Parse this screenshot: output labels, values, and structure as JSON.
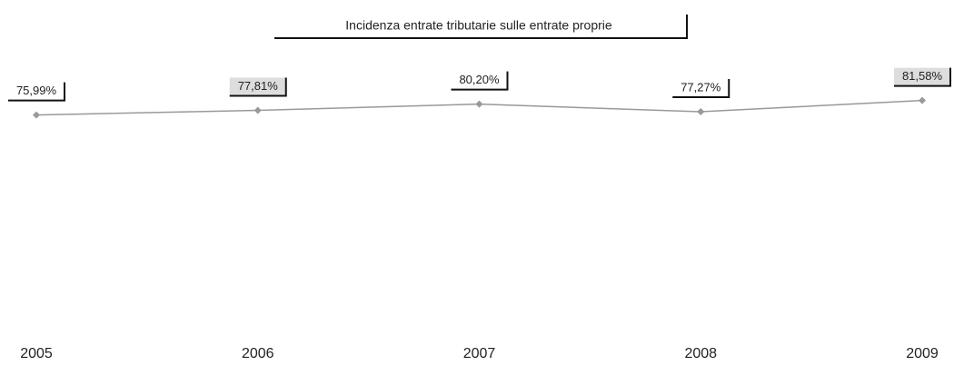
{
  "chart_data": {
    "type": "line",
    "title": "Incidenza entrate tributarie sulle entrate proprie",
    "categories": [
      "2005",
      "2006",
      "2007",
      "2008",
      "2009"
    ],
    "series": [
      {
        "color": "#999999",
        "values": [
          75.99,
          77.81,
          80.2,
          77.27,
          81.58
        ],
        "value_labels": [
          "75,99%",
          "77,81%",
          "80,20%",
          "77,27%",
          "81,58%"
        ]
      }
    ],
    "ylim": [
      0,
      100
    ]
  }
}
